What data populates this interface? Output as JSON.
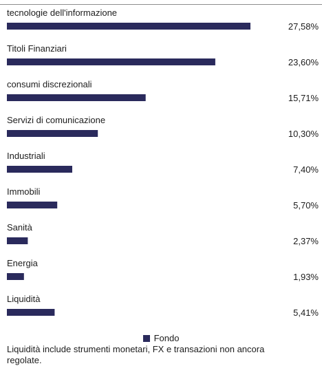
{
  "chart_data": {
    "type": "bar",
    "orientation": "horizontal",
    "categories": [
      "tecnologie dell'informazione",
      "Titoli Finanziari",
      "consumi discrezionali",
      "Servizi di comunicazione",
      "Industriali",
      "Immobili",
      "Sanità",
      "Energia",
      "Liquidità"
    ],
    "series": [
      {
        "name": "Fondo",
        "values": [
          27.58,
          23.6,
          15.71,
          10.3,
          7.4,
          5.7,
          2.37,
          1.93,
          5.41
        ],
        "labels": [
          "27,58%",
          "23,60%",
          "15,71%",
          "10,30%",
          "7,40%",
          "5,70%",
          "2,37%",
          "1,93%",
          "5,41%"
        ]
      }
    ],
    "unit": "%",
    "bar_color": "#2a2a5c"
  },
  "legend": {
    "label": "Fondo"
  },
  "footnote": "Liquidità include strumenti monetari, FX e transazioni non ancora regolate."
}
